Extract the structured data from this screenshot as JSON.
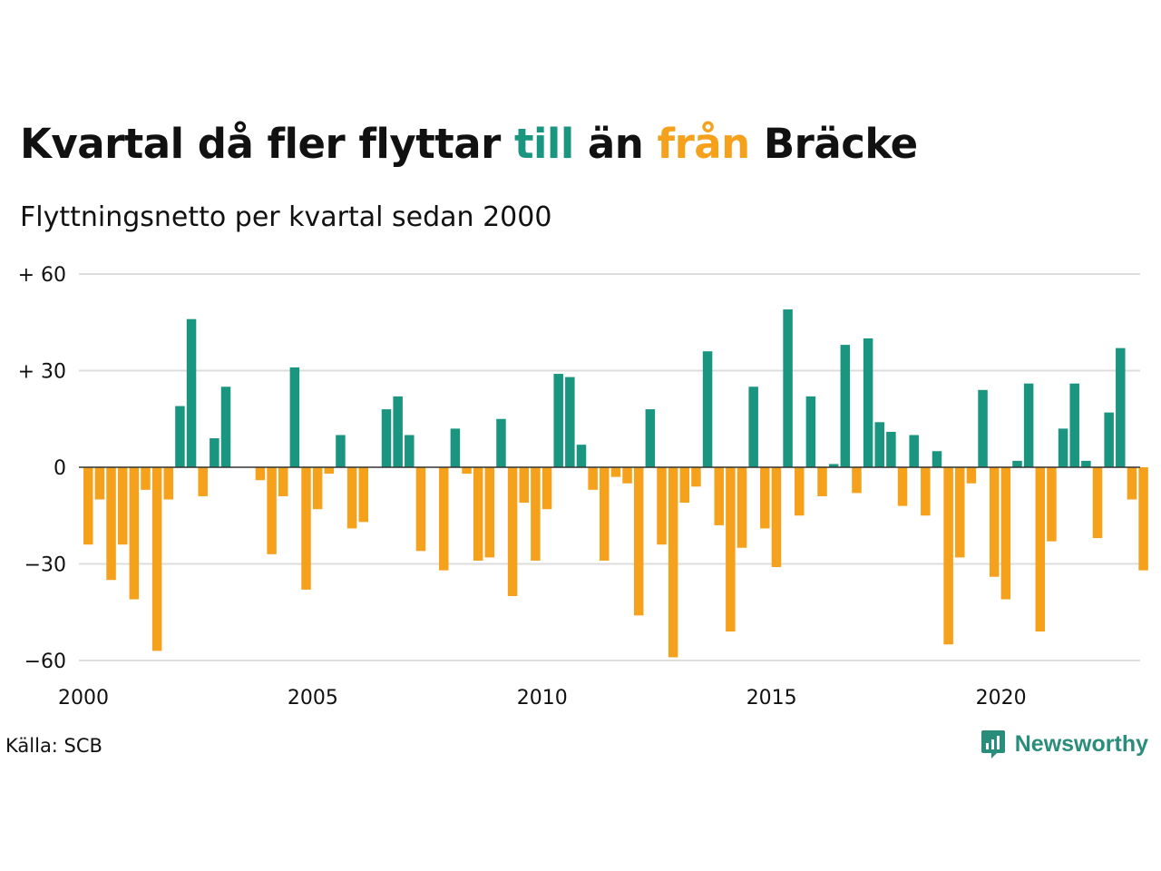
{
  "title": {
    "part1": "Kvartal då fler flyttar ",
    "till": "till",
    "part2": " än ",
    "fran": "från",
    "part3": " Bräcke"
  },
  "subtitle": "Flyttningsnetto per kvartal sedan 2000",
  "source": "Källa: SCB",
  "brand": {
    "name": "Newsworthy",
    "icon": "newsworthy-logo-icon"
  },
  "colors": {
    "positive": "#1a9680",
    "negative": "#f5a11c",
    "grid": "#dddddd",
    "zero_line": "#333333"
  },
  "chart_data": {
    "type": "bar",
    "title": "Kvartal då fler flyttar till än från Bräcke",
    "subtitle": "Flyttningsnetto per kvartal sedan 2000",
    "xlabel": "",
    "ylabel": "",
    "start": "2000 Q1",
    "end": "2023 Q1",
    "periodicity": "quarterly",
    "x_ticks": [
      "2000",
      "2005",
      "2010",
      "2015",
      "2020"
    ],
    "y_ticks": [
      {
        "value": 60,
        "label": "+ 60"
      },
      {
        "value": 30,
        "label": "+ 30"
      },
      {
        "value": 0,
        "label": "0"
      },
      {
        "value": -30,
        "label": "−30"
      },
      {
        "value": -60,
        "label": "−60"
      }
    ],
    "ylim": [
      -62,
      62
    ],
    "grid": true,
    "values": [
      -24,
      -10,
      -35,
      -24,
      -41,
      -7,
      -57,
      -10,
      19,
      46,
      -9,
      9,
      25,
      0,
      0,
      -4,
      -27,
      -9,
      31,
      -38,
      -13,
      -2,
      10,
      -19,
      -17,
      0,
      18,
      22,
      10,
      -26,
      0,
      -32,
      12,
      -2,
      -29,
      -28,
      15,
      -40,
      -11,
      -29,
      -13,
      29,
      28,
      7,
      -7,
      -29,
      -3,
      -5,
      -46,
      18,
      -24,
      -59,
      -11,
      -6,
      36,
      -18,
      -51,
      -25,
      25,
      -19,
      -31,
      49,
      -15,
      22,
      -9,
      1,
      38,
      -8,
      40,
      14,
      11,
      -12,
      10,
      -15,
      5,
      -55,
      -28,
      -5,
      24,
      -34,
      -41,
      2,
      26,
      -51,
      -23,
      12,
      26,
      2,
      -22,
      17,
      37,
      -10,
      -32
    ]
  }
}
